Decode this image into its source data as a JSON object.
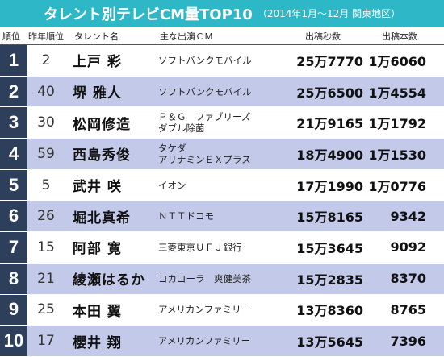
{
  "title": {
    "main": "タレント別テレビCM量TOP10",
    "sub": "（2014年1月～12月 関東地区）"
  },
  "headers": {
    "rank": "順位",
    "prev_rank": "昨年順位",
    "talent": "タレント名",
    "show": "主な出演ＣＭ",
    "seconds": "出稿秒数",
    "count": "出稿本数"
  },
  "rows": [
    {
      "rank": "1",
      "prev": "2",
      "name": "上戸 彩",
      "show": [
        "ソフトバンクモバイル"
      ],
      "seconds": "25万7770",
      "count": "1万6060"
    },
    {
      "rank": "2",
      "prev": "40",
      "name": "堺 雅人",
      "show": [
        "ソフトバンクモバイル"
      ],
      "seconds": "25万6500",
      "count": "1万4554"
    },
    {
      "rank": "3",
      "prev": "30",
      "name": "松岡修造",
      "show": [
        "Ｐ＆Ｇ　ファブリーズ",
        "ダブル除菌"
      ],
      "seconds": "21万9165",
      "count": "1万1792"
    },
    {
      "rank": "4",
      "prev": "59",
      "name": "西島秀俊",
      "show": [
        "タケダ",
        "アリナミンＥＸプラス"
      ],
      "seconds": "18万4900",
      "count": "1万1530"
    },
    {
      "rank": "5",
      "prev": "5",
      "name": "武井 咲",
      "show": [
        "イオン"
      ],
      "seconds": "17万1990",
      "count": "1万0776"
    },
    {
      "rank": "6",
      "prev": "26",
      "name": "堀北真希",
      "show": [
        "ＮＴＴドコモ"
      ],
      "seconds": "15万8165",
      "count": "9342"
    },
    {
      "rank": "7",
      "prev": "15",
      "name": "阿部 寛",
      "show": [
        "三菱東京ＵＦＪ銀行"
      ],
      "seconds": "15万3645",
      "count": "9092"
    },
    {
      "rank": "8",
      "prev": "21",
      "name": "綾瀬はるか",
      "show": [
        "コカコーラ　爽健美茶"
      ],
      "seconds": "15万2835",
      "count": "8370"
    },
    {
      "rank": "9",
      "prev": "25",
      "name": "本田 翼",
      "show": [
        "アメリカンファミリー"
      ],
      "seconds": "13万8360",
      "count": "8765"
    },
    {
      "rank": "10",
      "prev": "17",
      "name": "櫻井 翔",
      "show": [
        "アメリカンファミリー"
      ],
      "seconds": "13万5645",
      "count": "7396"
    }
  ]
}
